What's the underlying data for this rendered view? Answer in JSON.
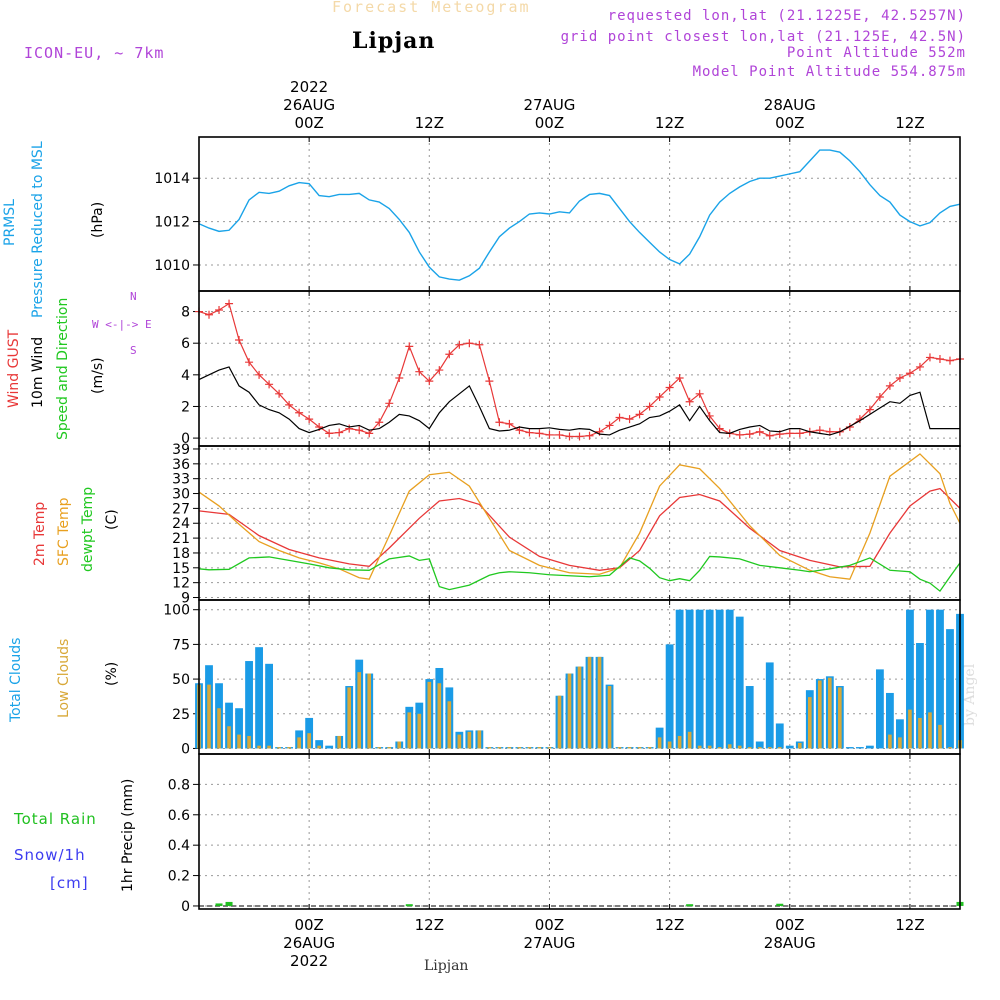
{
  "header": {
    "app_title": "Forecast Meteogram",
    "location": "Lipjan",
    "model": "ICON-EU, ~ 7km",
    "requested": "requested lon,lat (21.1225E, 42.5257N)",
    "grid_point": "grid point closest lon,lat (21.125E, 42.5N)",
    "point_altitude": "Point Altitude 552m",
    "model_altitude": "Model Point Altitude 554.875m",
    "footer_location": "Lipjan",
    "watermark": "by Angel"
  },
  "time_axis": {
    "ticks": [
      {
        "h": 0,
        "hour": "00Z",
        "date": "26AUG",
        "year": "2022"
      },
      {
        "h": 12,
        "hour": "12Z",
        "date": "",
        "year": ""
      },
      {
        "h": 24,
        "hour": "00Z",
        "date": "27AUG",
        "year": ""
      },
      {
        "h": 36,
        "hour": "12Z",
        "date": "",
        "year": ""
      },
      {
        "h": 48,
        "hour": "00Z",
        "date": "28AUG",
        "year": ""
      },
      {
        "h": 60,
        "hour": "12Z",
        "date": "",
        "year": ""
      }
    ],
    "range_hours": [
      -11,
      65
    ]
  },
  "panel_labels": {
    "pressure": {
      "left": "PRMSL",
      "mid": "Pressure Reduced to MSL",
      "unit": "(hPa)"
    },
    "wind": {
      "gust": "Wind GUST",
      "wind10": "10m Wind",
      "speed_dir": "Speed and Direction",
      "unit": "(m/s)",
      "compass_ns_n": "N",
      "compass_ns_s": "S",
      "compass_we": "W <-|-> E"
    },
    "temp": {
      "t2m": "2m Temp",
      "sfc": "SFC Temp",
      "dewpt": "dewpt Temp",
      "unit": "(C)"
    },
    "clouds": {
      "total": "Total Clouds",
      "low": "Low Clouds",
      "unit": "(%)"
    },
    "precip": {
      "rain": "Total  Rain",
      "snow": "Snow/1h",
      "snow_unit": "[cm]",
      "axis": "1hr Precip (mm)"
    }
  },
  "colors": {
    "pressure": "#1aa3e8",
    "gust": "#e83838",
    "wind10": "#000000",
    "t2m": "#e83838",
    "sfc": "#e8a020",
    "dewpt": "#20c820",
    "total_clouds": "#1a9be6",
    "low_clouds": "#d8a838",
    "rain": "#20c020",
    "snow": "#3c3cf0",
    "header": "#b044d8"
  },
  "chart_data": [
    {
      "type": "line",
      "title": "PRMSL Pressure Reduced to MSL",
      "ylabel": "(hPa)",
      "ylim": [
        1008.8,
        1015.9
      ],
      "yticks": [
        1010,
        1012,
        1014
      ],
      "series": [
        {
          "name": "PRMSL",
          "x": [
            -11,
            -10,
            -9,
            -8,
            -7,
            -6,
            -5,
            -4,
            -3,
            -2,
            -1,
            0,
            1,
            2,
            3,
            4,
            5,
            6,
            7,
            8,
            9,
            10,
            11,
            12,
            13,
            14,
            15,
            16,
            17,
            18,
            19,
            20,
            21,
            22,
            23,
            24,
            25,
            26,
            27,
            28,
            29,
            30,
            31,
            32,
            33,
            34,
            35,
            36,
            37,
            38,
            39,
            40,
            41,
            42,
            43,
            44,
            45,
            46,
            47,
            48,
            49,
            50,
            51,
            52,
            53,
            54,
            55,
            56,
            57,
            58,
            59,
            60,
            61,
            62,
            63,
            64,
            65
          ],
          "y": [
            1011.9,
            1011.7,
            1011.55,
            1011.6,
            1012.1,
            1013.0,
            1013.35,
            1013.3,
            1013.4,
            1013.65,
            1013.8,
            1013.75,
            1013.2,
            1013.15,
            1013.25,
            1013.25,
            1013.3,
            1013.0,
            1012.9,
            1012.6,
            1012.1,
            1011.5,
            1010.6,
            1009.9,
            1009.45,
            1009.35,
            1009.3,
            1009.5,
            1009.85,
            1010.6,
            1011.3,
            1011.7,
            1012.0,
            1012.35,
            1012.4,
            1012.35,
            1012.45,
            1012.4,
            1012.95,
            1013.25,
            1013.3,
            1013.2,
            1012.6,
            1012.0,
            1011.5,
            1011.05,
            1010.6,
            1010.25,
            1010.05,
            1010.5,
            1011.3,
            1012.3,
            1012.9,
            1013.3,
            1013.6,
            1013.85,
            1014.0,
            1014.0,
            1014.1,
            1014.2,
            1014.3,
            1014.8,
            1015.3,
            1015.3,
            1015.2,
            1014.8,
            1014.3,
            1013.7,
            1013.2,
            1012.9,
            1012.3,
            1012.0,
            1011.8,
            1011.95,
            1012.4,
            1012.7,
            1012.8
          ]
        }
      ]
    },
    {
      "type": "line",
      "title": "Wind GUST / 10m Wind Speed and Direction",
      "ylabel": "(m/s)",
      "ylim": [
        -0.5,
        9.3
      ],
      "yticks": [
        0,
        2,
        4,
        6,
        8
      ],
      "series": [
        {
          "name": "Wind GUST",
          "x": [
            -11,
            -10,
            -9,
            -8,
            -7,
            -6,
            -5,
            -4,
            -3,
            -2,
            -1,
            0,
            1,
            2,
            3,
            4,
            5,
            6,
            7,
            8,
            9,
            10,
            11,
            12,
            13,
            14,
            15,
            16,
            17,
            18,
            19,
            20,
            21,
            22,
            23,
            24,
            25,
            26,
            27,
            28,
            29,
            30,
            31,
            32,
            33,
            34,
            35,
            36,
            37,
            38,
            39,
            40,
            41,
            42,
            43,
            44,
            45,
            46,
            47,
            48,
            49,
            50,
            51,
            52,
            53,
            54,
            55,
            56,
            57,
            58,
            59,
            60,
            61,
            62,
            63,
            64,
            65
          ],
          "y": [
            8.0,
            7.8,
            8.1,
            8.5,
            6.2,
            4.8,
            4.0,
            3.4,
            2.8,
            2.1,
            1.6,
            1.2,
            0.7,
            0.3,
            0.35,
            0.6,
            0.5,
            0.3,
            1.0,
            2.2,
            3.8,
            5.8,
            4.2,
            3.6,
            4.3,
            5.3,
            5.9,
            6.0,
            5.9,
            3.6,
            1.0,
            0.9,
            0.5,
            0.35,
            0.3,
            0.2,
            0.2,
            0.1,
            0.1,
            0.15,
            0.4,
            0.8,
            1.3,
            1.2,
            1.5,
            2.0,
            2.6,
            3.2,
            3.8,
            2.3,
            2.8,
            1.4,
            0.6,
            0.3,
            0.2,
            0.25,
            0.4,
            0.15,
            0.25,
            0.3,
            0.3,
            0.4,
            0.5,
            0.4,
            0.4,
            0.7,
            1.2,
            1.8,
            2.6,
            3.3,
            3.8,
            4.1,
            4.5,
            5.1,
            5.0,
            4.9,
            5.0
          ]
        },
        {
          "name": "10m Wind",
          "x": [
            -11,
            -10,
            -9,
            -8,
            -7,
            -6,
            -5,
            -4,
            -3,
            -2,
            -1,
            0,
            1,
            2,
            3,
            4,
            5,
            6,
            7,
            8,
            9,
            10,
            11,
            12,
            13,
            14,
            15,
            16,
            17,
            18,
            19,
            20,
            21,
            22,
            23,
            24,
            25,
            26,
            27,
            28,
            29,
            30,
            31,
            32,
            33,
            34,
            35,
            36,
            37,
            38,
            39,
            40,
            41,
            42,
            43,
            44,
            45,
            46,
            47,
            48,
            49,
            50,
            51,
            52,
            53,
            54,
            55,
            56,
            57,
            58,
            59,
            60,
            61,
            62,
            63,
            64,
            65
          ],
          "y": [
            3.7,
            4.0,
            4.3,
            4.5,
            3.3,
            2.9,
            2.1,
            1.8,
            1.6,
            1.2,
            0.6,
            0.35,
            0.55,
            0.8,
            0.9,
            0.7,
            0.8,
            0.5,
            0.6,
            1.0,
            1.5,
            1.4,
            1.1,
            0.6,
            1.6,
            2.3,
            2.8,
            3.3,
            2.0,
            0.6,
            0.45,
            0.5,
            0.7,
            0.6,
            0.6,
            0.65,
            0.55,
            0.5,
            0.6,
            0.55,
            0.25,
            0.2,
            0.5,
            0.7,
            0.9,
            1.3,
            1.4,
            1.7,
            2.1,
            1.1,
            2.0,
            1.1,
            0.35,
            0.3,
            0.55,
            0.7,
            0.8,
            0.45,
            0.4,
            0.6,
            0.6,
            0.4,
            0.3,
            0.2,
            0.4,
            0.75,
            1.1,
            1.5,
            1.9,
            2.3,
            2.2,
            2.7,
            2.9,
            0.6,
            0.6,
            0.6,
            0.6
          ]
        }
      ]
    },
    {
      "type": "line",
      "title": "2m Temp / SFC Temp / dewpt Temp",
      "ylabel": "(C)",
      "ylim": [
        8.5,
        39.6
      ],
      "yticks": [
        9,
        12,
        15,
        18,
        21,
        24,
        27,
        30,
        33,
        36,
        39
      ],
      "series": [
        {
          "name": "2m Temp",
          "x": [
            -11,
            -8,
            -5,
            -2,
            1,
            4,
            6,
            8,
            11,
            13,
            15,
            17,
            20,
            23,
            26,
            29,
            31,
            33,
            35,
            37,
            39,
            41,
            44,
            47,
            50,
            53,
            56,
            58,
            60,
            62,
            63,
            65
          ],
          "y": [
            26.5,
            25.8,
            21.5,
            18.7,
            17.0,
            15.8,
            15.3,
            19.0,
            25.0,
            28.5,
            29.0,
            27.8,
            21.2,
            17.3,
            15.5,
            14.5,
            15.0,
            18.5,
            25.5,
            29.2,
            29.8,
            28.5,
            23.0,
            18.5,
            16.5,
            15.2,
            15.3,
            22.0,
            27.5,
            30.5,
            31.0,
            27.0
          ]
        },
        {
          "name": "SFC Temp",
          "x": [
            -11,
            -9,
            -7,
            -5,
            -3,
            -1,
            1,
            3,
            5,
            6,
            8,
            10,
            12,
            14,
            16,
            18,
            20,
            23,
            26,
            29,
            31,
            33,
            35,
            37,
            39,
            41,
            44,
            47,
            50,
            52,
            54,
            56,
            58,
            61,
            63,
            64,
            65
          ],
          "y": [
            30.3,
            27.5,
            23.8,
            20.3,
            18.5,
            17.0,
            16.0,
            14.8,
            13.0,
            12.7,
            21.5,
            30.5,
            33.8,
            34.3,
            31.5,
            25.0,
            18.5,
            15.5,
            14.0,
            13.7,
            15.0,
            22.0,
            31.5,
            35.8,
            35.0,
            31.0,
            23.5,
            17.5,
            14.5,
            13.2,
            12.7,
            22.0,
            33.5,
            38.0,
            34.0,
            28.0,
            24.0
          ]
        },
        {
          "name": "dewpt Temp",
          "x": [
            -11,
            -10,
            -8,
            -6,
            -4,
            -2,
            0,
            2,
            4,
            6,
            8,
            10,
            11,
            12,
            13,
            14,
            16,
            18,
            19,
            20,
            22,
            24,
            26,
            28,
            30,
            32,
            33,
            34,
            35,
            36,
            37,
            38,
            39,
            40,
            41,
            43,
            45,
            47,
            49,
            50,
            52,
            54,
            56,
            58,
            60,
            61,
            62,
            63,
            64,
            65
          ],
          "y": [
            14.8,
            14.6,
            14.7,
            17.0,
            17.2,
            16.5,
            15.8,
            15.0,
            14.6,
            14.5,
            16.8,
            17.4,
            16.5,
            16.8,
            11.2,
            10.6,
            11.5,
            13.5,
            14.0,
            14.2,
            14.0,
            13.6,
            13.4,
            13.2,
            13.5,
            17.0,
            16.4,
            14.9,
            13.0,
            12.4,
            12.8,
            12.4,
            14.5,
            17.3,
            17.2,
            16.8,
            15.5,
            15.0,
            14.5,
            14.2,
            14.8,
            15.5,
            17.0,
            14.5,
            14.2,
            12.7,
            11.9,
            10.3,
            13.2,
            16.0
          ]
        }
      ]
    },
    {
      "type": "bar",
      "title": "Total Clouds / Low Clouds",
      "ylabel": "(%)",
      "ylim": [
        -4,
        107
      ],
      "yticks": [
        0,
        25,
        50,
        75,
        100
      ],
      "x": [
        -11,
        -10,
        -9,
        -8,
        -7,
        -6,
        -5,
        -4,
        -3,
        -2,
        -1,
        0,
        1,
        2,
        3,
        4,
        5,
        6,
        7,
        8,
        9,
        10,
        11,
        12,
        13,
        14,
        15,
        16,
        17,
        18,
        19,
        20,
        21,
        22,
        23,
        24,
        25,
        26,
        27,
        28,
        29,
        30,
        31,
        32,
        33,
        34,
        35,
        36,
        37,
        38,
        39,
        40,
        41,
        42,
        43,
        44,
        45,
        46,
        47,
        48,
        49,
        50,
        51,
        52,
        53,
        54,
        55,
        56,
        57,
        58,
        59,
        60,
        61,
        62,
        63,
        64,
        65
      ],
      "series": [
        {
          "name": "Total Clouds",
          "values": [
            47,
            60,
            47,
            33,
            29,
            63,
            73,
            61,
            1,
            1,
            13,
            22,
            6,
            2,
            9,
            45,
            64,
            54,
            1,
            1,
            5,
            30,
            33,
            50,
            58,
            44,
            12,
            13,
            13,
            1,
            1,
            1,
            1,
            1,
            1,
            1,
            38,
            54,
            59,
            66,
            66,
            46,
            1,
            1,
            1,
            1,
            15,
            75,
            100,
            100,
            100,
            100,
            100,
            100,
            95,
            45,
            5,
            62,
            18,
            2,
            5,
            42,
            50,
            52,
            45,
            1,
            1,
            2,
            57,
            40,
            21,
            100,
            76,
            100,
            100,
            86,
            97
          ]
        },
        {
          "name": "Low Clouds",
          "values": [
            46,
            46,
            29,
            16,
            10,
            9,
            2,
            2,
            1,
            1,
            8,
            11,
            2,
            0,
            9,
            44,
            55,
            54,
            1,
            1,
            5,
            26,
            25,
            48,
            47,
            34,
            10,
            12,
            13,
            1,
            1,
            1,
            1,
            1,
            1,
            1,
            38,
            54,
            59,
            66,
            66,
            45,
            1,
            1,
            1,
            1,
            8,
            5,
            9,
            12,
            2,
            2,
            1,
            3,
            2,
            1,
            1,
            1,
            1,
            0,
            4,
            37,
            49,
            51,
            44,
            0,
            0,
            0,
            0,
            10,
            8,
            28,
            22,
            26,
            17,
            1,
            6
          ]
        }
      ]
    },
    {
      "type": "bar",
      "title": "1hr Precip",
      "ylabel": "1hr Precip (mm)",
      "ylim": [
        -0.02,
        1.0
      ],
      "yticks": [
        0,
        0.2,
        0.4,
        0.6,
        0.8
      ],
      "x": [
        -9,
        -8,
        10,
        38,
        47,
        65
      ],
      "series": [
        {
          "name": "Total Rain",
          "values": [
            0.01,
            0.02,
            0.005,
            0.005,
            0.008,
            0.02
          ]
        }
      ]
    }
  ]
}
